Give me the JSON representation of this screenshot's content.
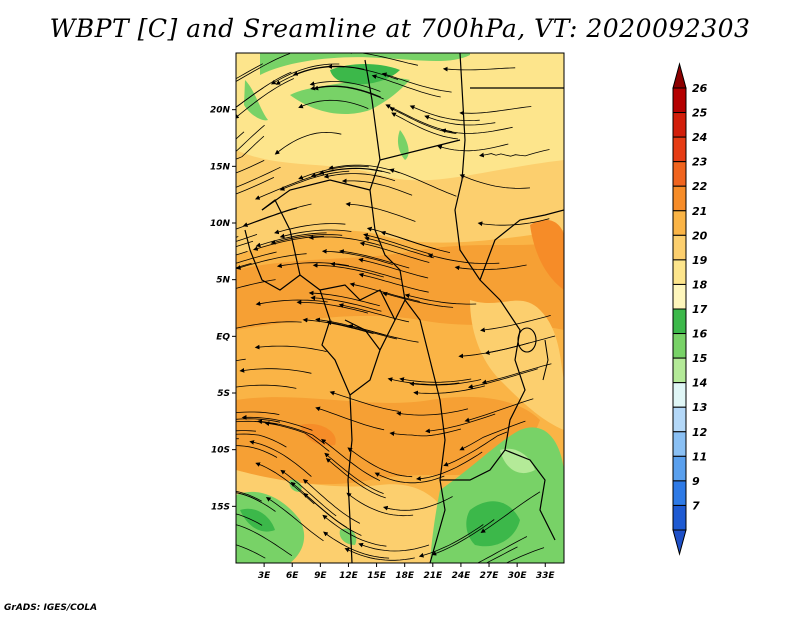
{
  "title": "WBPT [C] and Sreamline at 700hPa, VT: 2020092303",
  "credit": "GrADS: IGES/COLA",
  "map": {
    "lat_labels": [
      "20N",
      "15N",
      "10N",
      "5N",
      "EQ",
      "5S",
      "10S",
      "15S"
    ],
    "lon_labels": [
      "3E",
      "6E",
      "9E",
      "12E",
      "15E",
      "18E",
      "21E",
      "24E",
      "27E",
      "30E",
      "33E"
    ],
    "lat_range": [
      -20,
      25
    ],
    "lon_range": [
      0,
      35
    ]
  },
  "colorbar": {
    "labels": [
      "26",
      "25",
      "24",
      "23",
      "22",
      "21",
      "20",
      "19",
      "18",
      "17",
      "16",
      "15",
      "14",
      "13",
      "12",
      "11",
      "9",
      "7"
    ],
    "colors": [
      "#b40000",
      "#d21e0a",
      "#e63c14",
      "#f0641e",
      "#f68c28",
      "#fab446",
      "#fccf6e",
      "#fde58c",
      "#fef6bc",
      "#3cb84a",
      "#78d267",
      "#b4ea98",
      "#e0f6f6",
      "#b4d8f8",
      "#8ac0f4",
      "#5aa0ee",
      "#2e7ae6",
      "#1e5ad2"
    ],
    "top_arrow_color": "#8c0000",
    "bottom_arrow_color": "#1e50c8"
  },
  "colors": {
    "hot": "#f6a034",
    "warm": "#fab446",
    "mild": "#fccf6e",
    "pale": "#fde58c",
    "green": "#3cb84a",
    "lightgreen": "#78d267"
  }
}
